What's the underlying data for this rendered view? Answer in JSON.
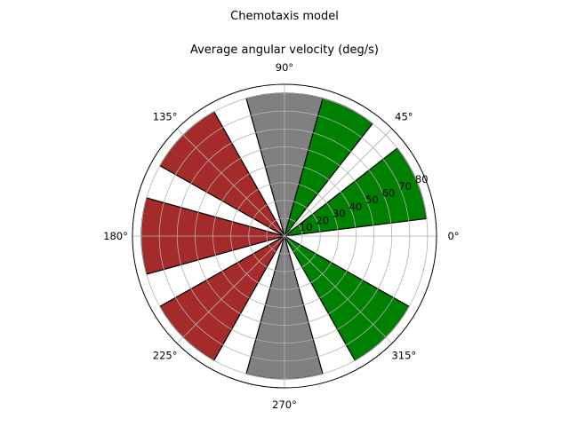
{
  "figure": {
    "suptitle": "Chemotaxis model"
  },
  "chart_data": {
    "type": "polar_bar",
    "title": "Average angular velocity (deg/s)",
    "theta_tick_labels": [
      "0°",
      "45°",
      "90°",
      "135°",
      "180°",
      "225°",
      "270°",
      "315°"
    ],
    "theta_ticks_deg": [
      0,
      45,
      90,
      135,
      180,
      225,
      270,
      315
    ],
    "r_tick_labels": [
      "10",
      "20",
      "30",
      "40",
      "50",
      "60",
      "70",
      "80"
    ],
    "r_ticks": [
      10,
      20,
      30,
      40,
      50,
      60,
      70,
      80
    ],
    "r_lim": [
      0,
      85
    ],
    "grid": true,
    "bars": [
      {
        "center_deg": 22.5,
        "width_deg": 31,
        "value": 80,
        "color": "#008000"
      },
      {
        "center_deg": 67.5,
        "width_deg": 31,
        "value": 80,
        "color": "#008000"
      },
      {
        "center_deg": 90,
        "width_deg": 31,
        "value": 80,
        "color": "#808080"
      },
      {
        "center_deg": 135,
        "width_deg": 31,
        "value": 80,
        "color": "#a52a2a"
      },
      {
        "center_deg": 180,
        "width_deg": 31,
        "value": 80,
        "color": "#a52a2a"
      },
      {
        "center_deg": 225,
        "width_deg": 31,
        "value": 80,
        "color": "#a52a2a"
      },
      {
        "center_deg": 270,
        "width_deg": 31,
        "value": 80,
        "color": "#808080"
      },
      {
        "center_deg": 315,
        "width_deg": 31,
        "value": 80,
        "color": "#008000"
      }
    ],
    "edge_color": "#000000",
    "grid_color": "#b0b0b0"
  }
}
